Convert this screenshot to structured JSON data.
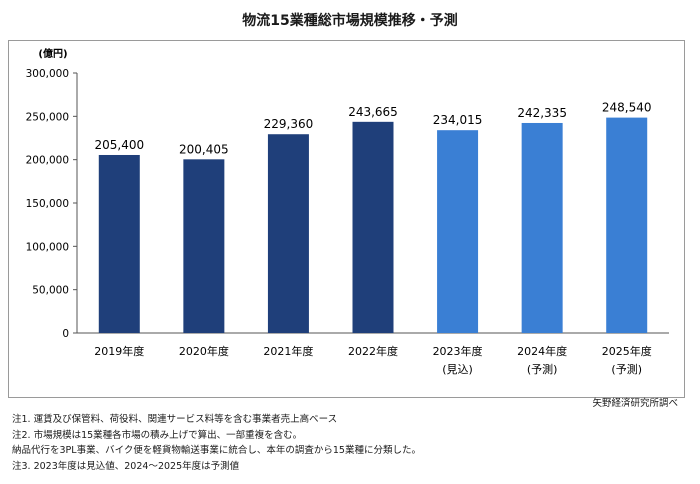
{
  "chart_data": {
    "type": "bar",
    "title": "物流15業種総市場規模推移・予測",
    "unit_label": "(億円)",
    "categories": [
      "2019年度",
      "2020年度",
      "2021年度",
      "2022年度",
      "2023年度",
      "2024年度",
      "2025年度"
    ],
    "category_sublabels": [
      "",
      "",
      "",
      "",
      "(見込)",
      "(予測)",
      "(予測)"
    ],
    "values": [
      205400,
      200405,
      229360,
      243665,
      234015,
      242335,
      248540
    ],
    "value_labels": [
      "205,400",
      "200,405",
      "229,360",
      "243,665",
      "234,015",
      "242,335",
      "248,540"
    ],
    "bar_kind": [
      "actual",
      "actual",
      "actual",
      "actual",
      "estimate",
      "forecast",
      "forecast"
    ],
    "ylim": [
      0,
      300000
    ],
    "yticks": [
      0,
      50000,
      100000,
      150000,
      200000,
      250000,
      300000
    ],
    "ytick_labels": [
      "0",
      "50,000",
      "100,000",
      "150,000",
      "200,000",
      "250,000",
      "300,000"
    ],
    "grid": false,
    "colors": {
      "actual": "#1f3f7a",
      "estimate": "#3a7fd4",
      "forecast": "#3a7fd4"
    }
  },
  "source": "矢野経済研究所調べ",
  "notes": [
    "注1.  運賃及び保管料、荷役料、関連サービス料等を含む事業者売上高ベース",
    "注2.  市場規模は15業種各市場の積み上げで算出、一部重複を含む。",
    "納品代行を3PL事業、バイク便を軽貨物輸送事業に統合し、本年の調査から15業種に分類した。",
    "注3.  2023年度は見込値、2024～2025年度は予測値"
  ]
}
